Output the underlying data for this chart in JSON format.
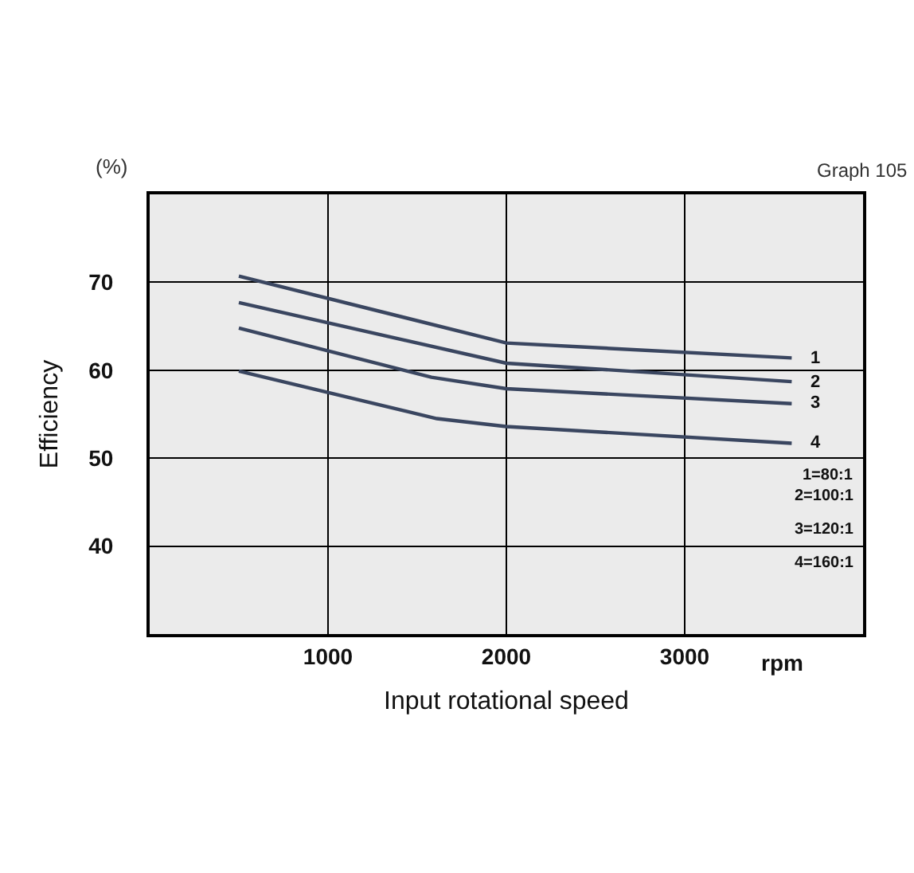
{
  "chart_data": {
    "type": "line",
    "xlabel": "Input rotational speed",
    "ylabel": "Efficiency",
    "xlim": [
      0,
      4000
    ],
    "ylim": [
      30,
      80
    ],
    "xticks": [
      1000,
      2000,
      3000
    ],
    "yticks": [
      40,
      50,
      60,
      70
    ],
    "grid": true,
    "legend": false,
    "marker": "none",
    "line_style": "solid",
    "series": [
      {
        "name": "1",
        "color": "#3a4660",
        "x": [
          500,
          2000,
          3600
        ],
        "values": [
          70.7,
          63.1,
          61.4
        ]
      },
      {
        "name": "2",
        "color": "#3a4660",
        "x": [
          500,
          2000,
          3600
        ],
        "values": [
          67.7,
          60.8,
          58.7
        ]
      },
      {
        "name": "3",
        "color": "#3a4660",
        "x": [
          500,
          1580,
          2000,
          3600
        ],
        "values": [
          64.8,
          59.2,
          57.9,
          56.2
        ]
      },
      {
        "name": "4",
        "color": "#3a4660",
        "x": [
          500,
          1610,
          2000,
          3600
        ],
        "values": [
          59.9,
          54.5,
          53.6,
          51.7
        ]
      }
    ],
    "annotations": [
      "Graph 105",
      "(%)",
      "rpm",
      "1=80:1",
      "2=100:1",
      "3=120:1",
      "4=160:1"
    ]
  }
}
